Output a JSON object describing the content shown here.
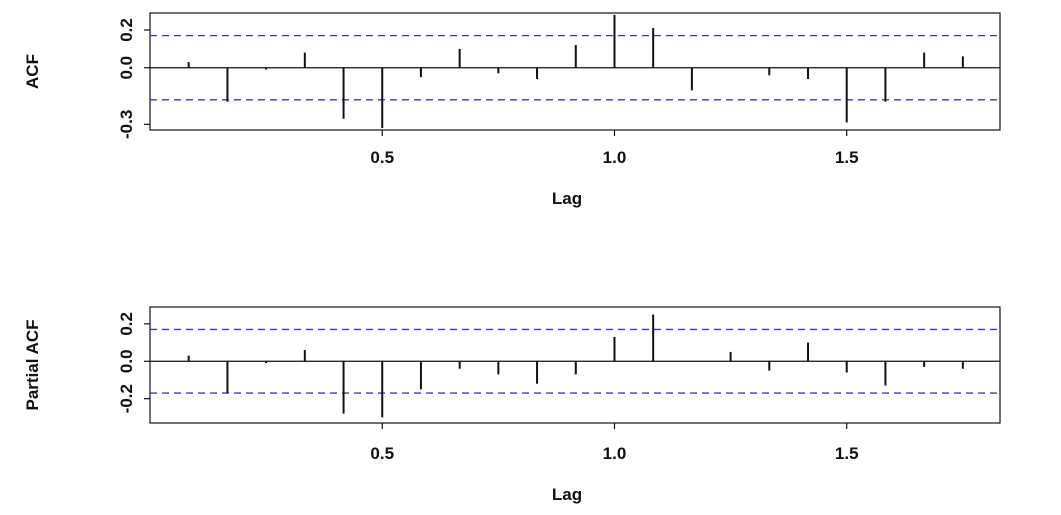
{
  "charts": [
    {
      "type": "bar",
      "subtype": "correlogram",
      "xlabel": "Lag",
      "ylabel": "ACF",
      "xlim": [
        0,
        1.83
      ],
      "ylim": [
        -0.33,
        0.29
      ],
      "x_ticks": [
        0.5,
        1.0,
        1.5
      ],
      "x_tick_labels": [
        "0.5",
        "1.0",
        "1.5"
      ],
      "y_ticks": [
        -0.3,
        0.0,
        0.2
      ],
      "y_tick_labels": [
        "-0.3",
        "0.0",
        "0.2"
      ],
      "confidence_bounds": [
        0.17,
        -0.17
      ],
      "grid": false,
      "colors": {
        "spikes": "#111111",
        "bounds": "#3333dd",
        "frame": "#111111"
      },
      "x": [
        0.0833,
        0.1667,
        0.25,
        0.3333,
        0.4167,
        0.5,
        0.5833,
        0.6667,
        0.75,
        0.8333,
        0.9167,
        1.0,
        1.0833,
        1.1667,
        1.25,
        1.3333,
        1.4167,
        1.5,
        1.5833,
        1.6667,
        1.75
      ],
      "values": [
        0.03,
        -0.18,
        -0.01,
        0.08,
        -0.27,
        -0.32,
        -0.05,
        0.1,
        -0.03,
        -0.06,
        0.12,
        0.28,
        0.21,
        -0.12,
        0.0,
        -0.04,
        -0.06,
        -0.29,
        -0.18,
        0.08,
        0.06
      ]
    },
    {
      "type": "bar",
      "subtype": "correlogram",
      "xlabel": "Lag",
      "ylabel": "Partial ACF",
      "xlim": [
        0,
        1.83
      ],
      "ylim": [
        -0.33,
        0.29
      ],
      "x_ticks": [
        0.5,
        1.0,
        1.5
      ],
      "x_tick_labels": [
        "0.5",
        "1.0",
        "1.5"
      ],
      "y_ticks": [
        -0.2,
        0.0,
        0.2
      ],
      "y_tick_labels": [
        "-0.2",
        "0.0",
        "0.2"
      ],
      "confidence_bounds": [
        0.17,
        -0.17
      ],
      "grid": false,
      "colors": {
        "spikes": "#111111",
        "bounds": "#3333dd",
        "frame": "#111111"
      },
      "x": [
        0.0833,
        0.1667,
        0.25,
        0.3333,
        0.4167,
        0.5,
        0.5833,
        0.6667,
        0.75,
        0.8333,
        0.9167,
        1.0,
        1.0833,
        1.1667,
        1.25,
        1.3333,
        1.4167,
        1.5,
        1.5833,
        1.6667,
        1.75
      ],
      "values": [
        0.03,
        -0.17,
        -0.01,
        0.06,
        -0.28,
        -0.3,
        -0.15,
        -0.04,
        -0.07,
        -0.12,
        -0.07,
        0.13,
        0.25,
        0.0,
        0.05,
        -0.05,
        0.1,
        -0.06,
        -0.13,
        -0.03,
        -0.04
      ]
    }
  ]
}
